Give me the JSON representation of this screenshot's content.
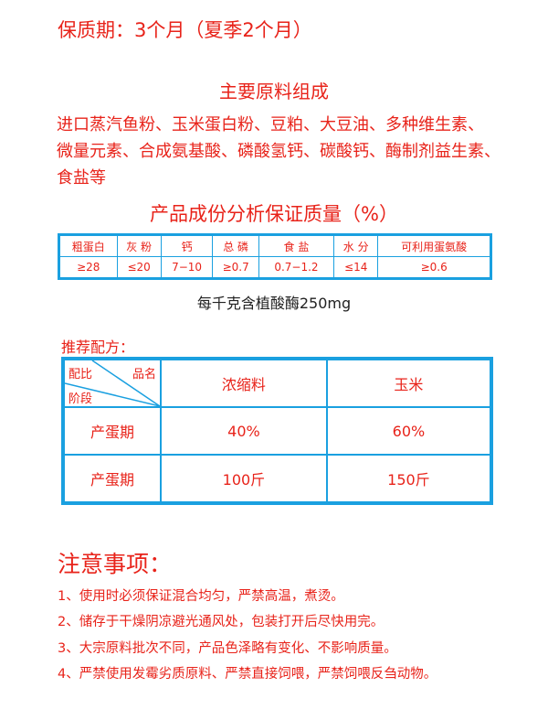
{
  "shelf_life": "保质期：3个月（夏季2个月）",
  "materials": {
    "title": "主要原料组成",
    "lines": [
      "进口蒸汽鱼粉、玉米蛋白粉、豆粕、大豆油、多种维生素、",
      "微量元素、合成氨基酸、磷酸氢钙、碳酸钙、酶制剂益生素、",
      "食盐等"
    ]
  },
  "analysis": {
    "title": "产品成份分析保证质量（%）",
    "headers": [
      "粗蛋白",
      "灰 粉",
      "钙",
      "总 磷",
      "食 盐",
      "水 分",
      "可利用蛋氨酸"
    ],
    "values": [
      "≥28",
      "≤20",
      "7−10",
      "≥0.7",
      "0.7−1.2",
      "≤14",
      "≥0.6"
    ]
  },
  "phytase": "每千克含植酸酶250mg",
  "recipe": {
    "title": "推荐配方：",
    "corner_top": "品名",
    "corner_mid": "配比",
    "corner_bottom": "阶段",
    "columns": [
      "浓缩料",
      "玉米"
    ],
    "rows": [
      {
        "stage": "产蛋期",
        "values": [
          "40%",
          "60%"
        ]
      },
      {
        "stage": "产蛋期",
        "values": [
          "100斤",
          "150斤"
        ]
      }
    ]
  },
  "notes": {
    "title": "注意事项：",
    "items": [
      "1、使用时必须保证混合均匀，严禁高温，煮烫。",
      "2、储存于干燥阴凉避光通风处，包装打开后尽快用完。",
      "3、大宗原料批次不同，产品色泽略有变化、不影响质量。",
      "4、严禁使用发霉劣质原料、严禁直接饲喂，严禁饲喂反刍动物。"
    ]
  },
  "colors": {
    "text": "#e8231a",
    "border": "#1aa0e0"
  }
}
